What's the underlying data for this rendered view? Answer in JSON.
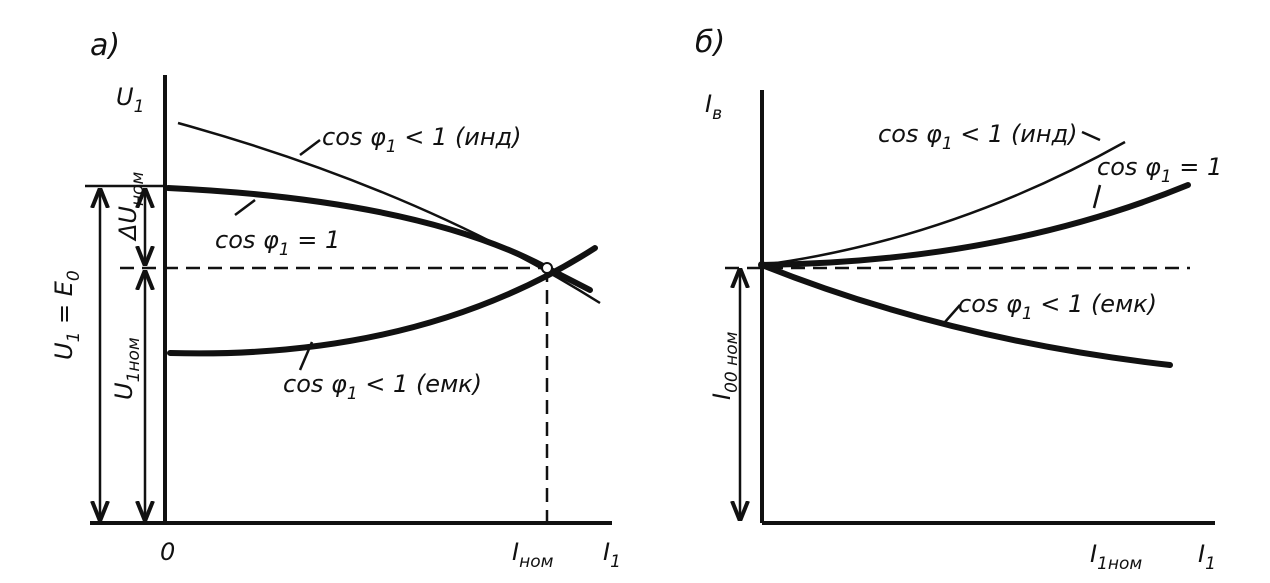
{
  "panel_a": {
    "caption": {
      "parts": [
        "а)"
      ]
    },
    "y_axis": {
      "parts": [
        "U",
        "1"
      ]
    },
    "curve_ind": {
      "parts": [
        "cos φ",
        "1",
        " < 1 (инд)"
      ]
    },
    "curve_unity": {
      "parts": [
        "cos φ",
        "1",
        " = 1"
      ]
    },
    "curve_cap": {
      "parts": [
        "cos φ",
        "1",
        " < 1 (емк)"
      ]
    },
    "delta_u": {
      "parts": [
        "ΔU",
        "ном"
      ]
    },
    "u1_e0": {
      "parts": [
        "U",
        "1",
        " = E",
        "0"
      ]
    },
    "u1_nom": {
      "parts": [
        "U",
        "1ном"
      ]
    },
    "origin": {
      "parts": [
        "0"
      ]
    },
    "i_nom": {
      "parts": [
        "I",
        "ном"
      ]
    },
    "x_axis": {
      "parts": [
        "I",
        "1"
      ]
    }
  },
  "panel_b": {
    "caption": {
      "parts": [
        "б)"
      ]
    },
    "y_axis": {
      "parts": [
        "I",
        "в"
      ]
    },
    "curve_ind": {
      "parts": [
        "cos φ",
        "1",
        " < 1 (инд)"
      ]
    },
    "curve_unity": {
      "parts": [
        "cos φ",
        "1",
        " = 1"
      ]
    },
    "curve_cap": {
      "parts": [
        "cos φ",
        "1",
        " < 1 (емк)"
      ]
    },
    "i_field_nom": {
      "parts": [
        "I",
        "00 ном"
      ]
    },
    "x_mark": {
      "parts": [
        "I",
        "1ном"
      ]
    },
    "x_axis": {
      "parts": [
        "I",
        "1"
      ]
    }
  }
}
